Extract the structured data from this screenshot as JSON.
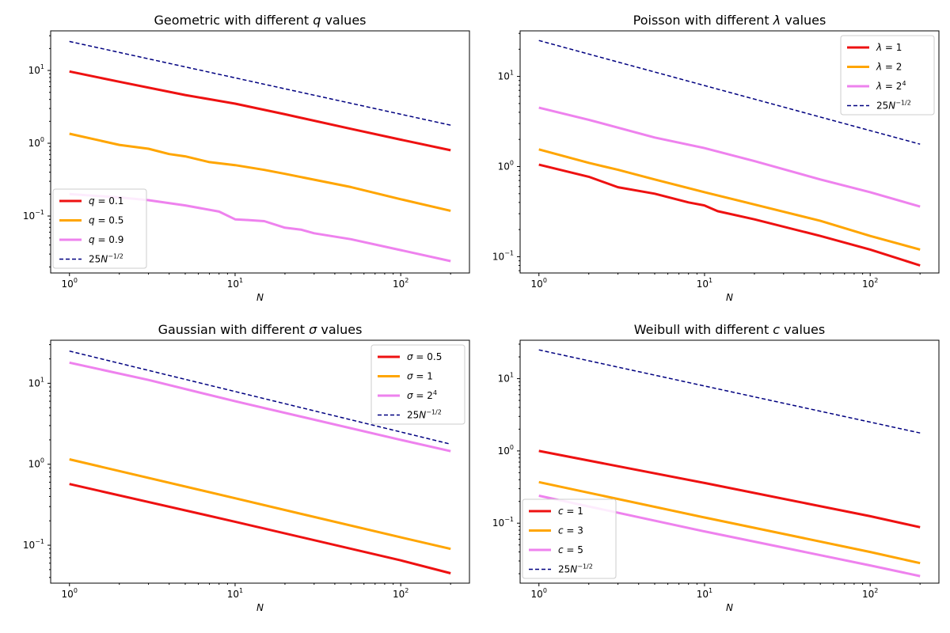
{
  "colors": {
    "red": "#ee1111",
    "orange": "#ffa500",
    "violet": "#ee82ee",
    "navy": "#000080"
  },
  "chart_data": [
    {
      "type": "line",
      "title": "Geometric with different q values",
      "title_parts": [
        {
          "text": "Geometric with different "
        },
        {
          "text": "q",
          "italic": true
        },
        {
          "text": " values"
        }
      ],
      "xlabel": "N",
      "xscale": "log",
      "yscale": "log",
      "xlim": [
        0.77,
        260
      ],
      "ylim": [
        0.0165,
        35
      ],
      "xticks": [
        {
          "value": 1,
          "exp": "0"
        },
        {
          "value": 10,
          "exp": "1"
        },
        {
          "value": 100,
          "exp": "2"
        }
      ],
      "yticks": [
        {
          "value": 0.1,
          "exp": "−1"
        },
        {
          "value": 1,
          "exp": "0"
        },
        {
          "value": 10,
          "exp": "1"
        }
      ],
      "legend_position": "lower-left",
      "series": [
        {
          "name": "q = 0.1",
          "color": "#ee1111",
          "width": 3,
          "style": "solid",
          "x": [
            1,
            2,
            5,
            10,
            20,
            50,
            100,
            200
          ],
          "values": [
            9.7,
            7.0,
            4.6,
            3.5,
            2.5,
            1.58,
            1.12,
            0.8
          ],
          "label": [
            {
              "text": "q",
              "italic": true
            },
            {
              "text": " = 0.1"
            }
          ]
        },
        {
          "name": "q = 0.5",
          "color": "#ffa500",
          "width": 3,
          "style": "solid",
          "x": [
            1,
            2,
            3,
            4,
            5,
            7,
            10,
            15,
            20,
            50,
            100,
            200
          ],
          "values": [
            1.35,
            0.95,
            0.84,
            0.71,
            0.66,
            0.55,
            0.5,
            0.43,
            0.38,
            0.25,
            0.17,
            0.118
          ],
          "label": [
            {
              "text": "q",
              "italic": true
            },
            {
              "text": " = 0.5"
            }
          ]
        },
        {
          "name": "q = 0.9",
          "color": "#ee82ee",
          "width": 3,
          "style": "solid",
          "x": [
            1,
            2,
            3,
            5,
            8,
            10,
            12,
            15,
            20,
            25,
            30,
            50,
            100,
            200
          ],
          "values": [
            0.2,
            0.18,
            0.165,
            0.14,
            0.115,
            0.09,
            0.088,
            0.085,
            0.069,
            0.065,
            0.058,
            0.048,
            0.034,
            0.024
          ],
          "label": [
            {
              "text": "q",
              "italic": true
            },
            {
              "text": " = 0.9"
            }
          ]
        },
        {
          "name": "25N^-1/2",
          "color": "#000080",
          "width": 1.5,
          "style": "dashed",
          "x": [
            1,
            200
          ],
          "values": [
            25,
            1.77
          ],
          "label": [
            {
              "text": "25"
            },
            {
              "text": "N",
              "italic": true
            },
            {
              "text": "−1/2",
              "sup": true
            }
          ]
        }
      ]
    },
    {
      "type": "line",
      "title": "Poisson with different λ values",
      "title_parts": [
        {
          "text": "Poisson with different "
        },
        {
          "text": "λ",
          "italic": true
        },
        {
          "text": " values"
        }
      ],
      "xlabel": "N",
      "xscale": "log",
      "yscale": "log",
      "xlim": [
        0.77,
        260
      ],
      "ylim": [
        0.066,
        32
      ],
      "xticks": [
        {
          "value": 1,
          "exp": "0"
        },
        {
          "value": 10,
          "exp": "1"
        },
        {
          "value": 100,
          "exp": "2"
        }
      ],
      "yticks": [
        {
          "value": 0.1,
          "exp": "−1"
        },
        {
          "value": 1,
          "exp": "0"
        },
        {
          "value": 10,
          "exp": "1"
        }
      ],
      "legend_position": "upper-right",
      "series": [
        {
          "name": "λ = 1",
          "color": "#ee1111",
          "width": 3,
          "style": "solid",
          "x": [
            1,
            2,
            3,
            5,
            8,
            10,
            12,
            20,
            50,
            100,
            200
          ],
          "values": [
            1.05,
            0.77,
            0.59,
            0.5,
            0.4,
            0.37,
            0.32,
            0.26,
            0.17,
            0.12,
            0.08
          ],
          "label": [
            {
              "text": "λ",
              "italic": true
            },
            {
              "text": " = 1"
            }
          ]
        },
        {
          "name": "λ = 2",
          "color": "#ffa500",
          "width": 3,
          "style": "solid",
          "x": [
            1,
            2,
            3,
            5,
            10,
            20,
            50,
            100,
            200
          ],
          "values": [
            1.55,
            1.1,
            0.92,
            0.72,
            0.52,
            0.38,
            0.25,
            0.17,
            0.12
          ],
          "label": [
            {
              "text": "λ",
              "italic": true
            },
            {
              "text": " = 2"
            }
          ]
        },
        {
          "name": "λ = 2^4",
          "color": "#ee82ee",
          "width": 3,
          "style": "solid",
          "x": [
            1,
            2,
            5,
            10,
            20,
            50,
            100,
            200
          ],
          "values": [
            4.5,
            3.3,
            2.1,
            1.6,
            1.15,
            0.72,
            0.52,
            0.36
          ],
          "label": [
            {
              "text": "λ",
              "italic": true
            },
            {
              "text": " = 2"
            },
            {
              "text": "4",
              "sup": true
            }
          ]
        },
        {
          "name": "25N^-1/2",
          "color": "#000080",
          "width": 1.5,
          "style": "dashed",
          "x": [
            1,
            200
          ],
          "values": [
            25,
            1.77
          ],
          "label": [
            {
              "text": "25"
            },
            {
              "text": "N",
              "italic": true
            },
            {
              "text": "−1/2",
              "sup": true
            }
          ]
        }
      ]
    },
    {
      "type": "line",
      "title": "Gaussian with different σ values",
      "title_parts": [
        {
          "text": "Gaussian with different "
        },
        {
          "text": "σ",
          "italic": true
        },
        {
          "text": " values"
        }
      ],
      "xlabel": "N",
      "xscale": "log",
      "yscale": "log",
      "xlim": [
        0.77,
        260
      ],
      "ylim": [
        0.034,
        34
      ],
      "xticks": [
        {
          "value": 1,
          "exp": "0"
        },
        {
          "value": 10,
          "exp": "1"
        },
        {
          "value": 100,
          "exp": "2"
        }
      ],
      "yticks": [
        {
          "value": 0.1,
          "exp": "−1"
        },
        {
          "value": 1,
          "exp": "0"
        },
        {
          "value": 10,
          "exp": "1"
        }
      ],
      "legend_position": "upper-right",
      "series": [
        {
          "name": "σ = 0.5",
          "color": "#ee1111",
          "width": 3,
          "style": "solid",
          "x": [
            1,
            10,
            100,
            200
          ],
          "values": [
            0.57,
            0.195,
            0.065,
            0.045
          ],
          "label": [
            {
              "text": "σ",
              "italic": true
            },
            {
              "text": " = 0.5"
            }
          ]
        },
        {
          "name": "σ = 1",
          "color": "#ffa500",
          "width": 3,
          "style": "solid",
          "x": [
            1,
            10,
            100,
            200
          ],
          "values": [
            1.15,
            0.38,
            0.125,
            0.09
          ],
          "label": [
            {
              "text": "σ",
              "italic": true
            },
            {
              "text": " = 1"
            }
          ]
        },
        {
          "name": "σ = 2^4",
          "color": "#ee82ee",
          "width": 3,
          "style": "solid",
          "x": [
            1,
            3,
            10,
            100,
            200
          ],
          "values": [
            18,
            11,
            6.0,
            2.0,
            1.45
          ],
          "label": [
            {
              "text": "σ",
              "italic": true
            },
            {
              "text": " = 2"
            },
            {
              "text": "4",
              "sup": true
            }
          ]
        },
        {
          "name": "25N^-1/2",
          "color": "#000080",
          "width": 1.5,
          "style": "dashed",
          "x": [
            1,
            200
          ],
          "values": [
            25,
            1.77
          ],
          "label": [
            {
              "text": "25"
            },
            {
              "text": "N",
              "italic": true
            },
            {
              "text": "−1/2",
              "sup": true
            }
          ]
        }
      ]
    },
    {
      "type": "line",
      "title": "Weibull with different c values",
      "title_parts": [
        {
          "text": "Weibull with different "
        },
        {
          "text": "c",
          "italic": true
        },
        {
          "text": " values"
        }
      ],
      "xlabel": "N",
      "xscale": "log",
      "yscale": "log",
      "xlim": [
        0.77,
        260
      ],
      "ylim": [
        0.0148,
        34
      ],
      "xticks": [
        {
          "value": 1,
          "exp": "0"
        },
        {
          "value": 10,
          "exp": "1"
        },
        {
          "value": 100,
          "exp": "2"
        }
      ],
      "yticks": [
        {
          "value": 0.1,
          "exp": "−1"
        },
        {
          "value": 1,
          "exp": "0"
        },
        {
          "value": 10,
          "exp": "1"
        }
      ],
      "legend_position": "lower-left",
      "series": [
        {
          "name": "c = 1",
          "color": "#ee1111",
          "width": 3,
          "style": "solid",
          "x": [
            1,
            10,
            100,
            200
          ],
          "values": [
            1.0,
            0.36,
            0.125,
            0.088
          ],
          "label": [
            {
              "text": "c",
              "italic": true
            },
            {
              "text": " = 1"
            }
          ]
        },
        {
          "name": "c = 3",
          "color": "#ffa500",
          "width": 3,
          "style": "solid",
          "x": [
            1,
            10,
            100,
            200
          ],
          "values": [
            0.37,
            0.12,
            0.04,
            0.028
          ],
          "label": [
            {
              "text": "c",
              "italic": true
            },
            {
              "text": " = 3"
            }
          ]
        },
        {
          "name": "c = 5",
          "color": "#ee82ee",
          "width": 3,
          "style": "solid",
          "x": [
            1,
            10,
            100,
            200
          ],
          "values": [
            0.24,
            0.077,
            0.026,
            0.0185
          ],
          "label": [
            {
              "text": "c",
              "italic": true
            },
            {
              "text": " = 5"
            }
          ]
        },
        {
          "name": "25N^-1/2",
          "color": "#000080",
          "width": 1.5,
          "style": "dashed",
          "x": [
            1,
            200
          ],
          "values": [
            25,
            1.77
          ],
          "label": [
            {
              "text": "25"
            },
            {
              "text": "N",
              "italic": true
            },
            {
              "text": "−1/2",
              "sup": true
            }
          ]
        }
      ]
    }
  ]
}
